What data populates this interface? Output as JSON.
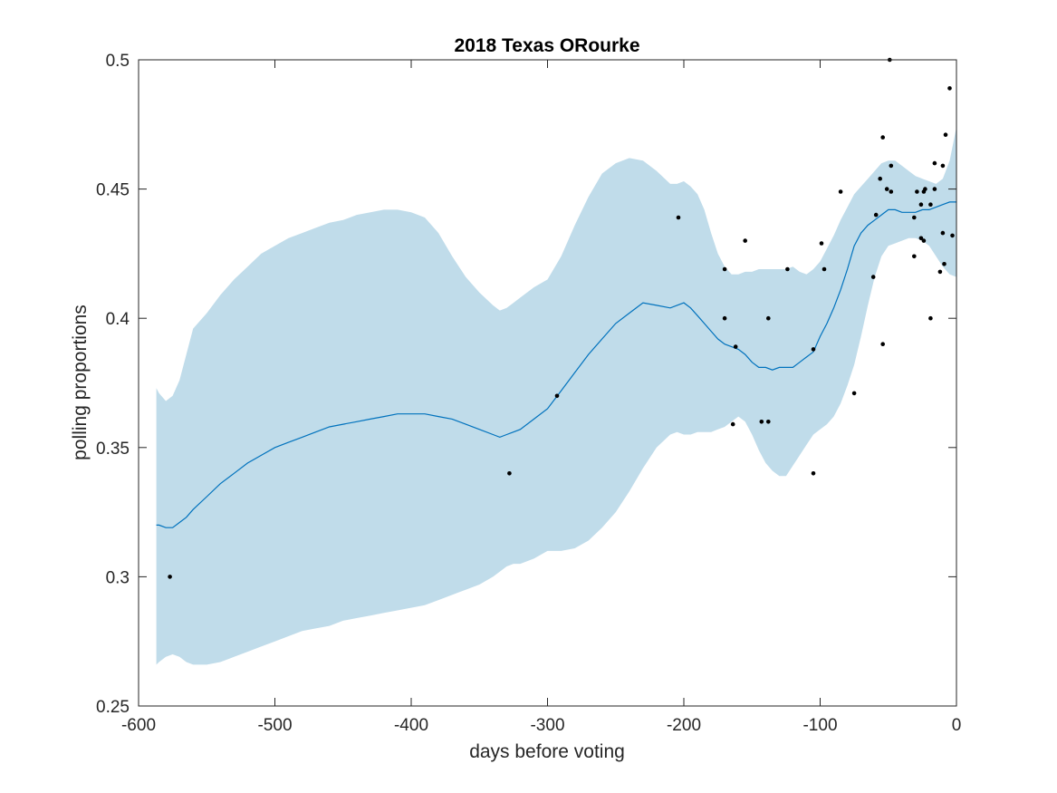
{
  "chart_data": {
    "type": "scatter",
    "title": "2018 Texas ORourke",
    "xlabel": "days before voting",
    "ylabel": "polling proportions",
    "xlim": [
      -600,
      0
    ],
    "ylim": [
      0.25,
      0.5
    ],
    "xticks": [
      -600,
      -500,
      -400,
      -300,
      -200,
      -100,
      0
    ],
    "xtick_labels": [
      "-600",
      "-500",
      "-400",
      "-300",
      "-200",
      "-100",
      "0"
    ],
    "yticks": [
      0.25,
      0.3,
      0.35,
      0.4,
      0.45,
      0.5
    ],
    "ytick_labels": [
      "0.25",
      "0.3",
      "0.35",
      "0.4",
      "0.45",
      "0.5"
    ],
    "grid": false,
    "colors": {
      "band": "#c0dcea",
      "trend": "#0072bd",
      "points": "#000000",
      "axes": "#262626"
    },
    "series": [
      {
        "type": "area",
        "x": [
          -587,
          -585,
          -580,
          -575,
          -570,
          -565,
          -560,
          -550,
          -540,
          -530,
          -520,
          -510,
          -500,
          -490,
          -480,
          -470,
          -460,
          -450,
          -440,
          -430,
          -420,
          -410,
          -400,
          -390,
          -380,
          -370,
          -360,
          -350,
          -340,
          -335,
          -330,
          -325,
          -320,
          -310,
          -300,
          -290,
          -280,
          -270,
          -260,
          -250,
          -240,
          -230,
          -220,
          -210,
          -205,
          -200,
          -195,
          -190,
          -185,
          -180,
          -175,
          -170,
          -165,
          -160,
          -155,
          -150,
          -145,
          -140,
          -135,
          -130,
          -125,
          -120,
          -115,
          -110,
          -105,
          -100,
          -95,
          -90,
          -85,
          -80,
          -75,
          -70,
          -65,
          -60,
          -55,
          -50,
          -45,
          -40,
          -35,
          -30,
          -25,
          -20,
          -15,
          -10,
          -5,
          0
        ],
        "upper": [
          0.373,
          0.371,
          0.368,
          0.37,
          0.376,
          0.386,
          0.396,
          0.402,
          0.409,
          0.415,
          0.42,
          0.425,
          0.428,
          0.431,
          0.433,
          0.435,
          0.437,
          0.438,
          0.44,
          0.441,
          0.442,
          0.442,
          0.441,
          0.439,
          0.433,
          0.424,
          0.416,
          0.41,
          0.405,
          0.403,
          0.404,
          0.406,
          0.408,
          0.412,
          0.415,
          0.424,
          0.436,
          0.447,
          0.456,
          0.46,
          0.462,
          0.461,
          0.457,
          0.452,
          0.452,
          0.453,
          0.451,
          0.448,
          0.442,
          0.433,
          0.425,
          0.42,
          0.417,
          0.417,
          0.418,
          0.418,
          0.419,
          0.419,
          0.419,
          0.419,
          0.419,
          0.42,
          0.418,
          0.417,
          0.419,
          0.422,
          0.427,
          0.432,
          0.438,
          0.443,
          0.448,
          0.451,
          0.454,
          0.457,
          0.46,
          0.461,
          0.461,
          0.459,
          0.457,
          0.455,
          0.454,
          0.453,
          0.452,
          0.454,
          0.461,
          0.474
        ],
        "lower": [
          0.266,
          0.267,
          0.269,
          0.27,
          0.269,
          0.267,
          0.266,
          0.266,
          0.267,
          0.269,
          0.271,
          0.273,
          0.275,
          0.277,
          0.279,
          0.28,
          0.281,
          0.283,
          0.284,
          0.285,
          0.286,
          0.287,
          0.288,
          0.289,
          0.291,
          0.293,
          0.295,
          0.297,
          0.3,
          0.302,
          0.304,
          0.305,
          0.305,
          0.307,
          0.31,
          0.31,
          0.311,
          0.314,
          0.319,
          0.325,
          0.333,
          0.342,
          0.35,
          0.355,
          0.356,
          0.355,
          0.355,
          0.356,
          0.356,
          0.356,
          0.357,
          0.358,
          0.36,
          0.362,
          0.36,
          0.355,
          0.349,
          0.344,
          0.341,
          0.339,
          0.339,
          0.343,
          0.347,
          0.351,
          0.355,
          0.357,
          0.359,
          0.362,
          0.367,
          0.374,
          0.382,
          0.393,
          0.405,
          0.416,
          0.424,
          0.428,
          0.429,
          0.43,
          0.431,
          0.431,
          0.43,
          0.428,
          0.424,
          0.42,
          0.417,
          0.416
        ]
      },
      {
        "type": "line",
        "x": [
          -587,
          -585,
          -580,
          -575,
          -570,
          -565,
          -560,
          -550,
          -540,
          -530,
          -520,
          -510,
          -500,
          -490,
          -480,
          -470,
          -460,
          -450,
          -440,
          -430,
          -420,
          -410,
          -400,
          -390,
          -380,
          -370,
          -360,
          -350,
          -340,
          -335,
          -330,
          -325,
          -320,
          -310,
          -300,
          -290,
          -280,
          -270,
          -260,
          -250,
          -240,
          -230,
          -220,
          -210,
          -205,
          -200,
          -195,
          -190,
          -185,
          -180,
          -175,
          -170,
          -165,
          -160,
          -155,
          -150,
          -145,
          -140,
          -135,
          -130,
          -125,
          -120,
          -115,
          -110,
          -105,
          -100,
          -95,
          -90,
          -85,
          -80,
          -75,
          -70,
          -65,
          -60,
          -55,
          -50,
          -45,
          -40,
          -35,
          -30,
          -25,
          -20,
          -15,
          -10,
          -5,
          0
        ],
        "y": [
          0.32,
          0.32,
          0.319,
          0.319,
          0.321,
          0.323,
          0.326,
          0.331,
          0.336,
          0.34,
          0.344,
          0.347,
          0.35,
          0.352,
          0.354,
          0.356,
          0.358,
          0.359,
          0.36,
          0.361,
          0.362,
          0.363,
          0.363,
          0.363,
          0.362,
          0.361,
          0.359,
          0.357,
          0.355,
          0.354,
          0.355,
          0.356,
          0.357,
          0.361,
          0.365,
          0.372,
          0.379,
          0.386,
          0.392,
          0.398,
          0.402,
          0.406,
          0.405,
          0.404,
          0.405,
          0.406,
          0.404,
          0.401,
          0.398,
          0.395,
          0.392,
          0.39,
          0.389,
          0.388,
          0.386,
          0.383,
          0.381,
          0.381,
          0.38,
          0.381,
          0.381,
          0.381,
          0.383,
          0.385,
          0.387,
          0.393,
          0.398,
          0.404,
          0.411,
          0.419,
          0.428,
          0.433,
          0.436,
          0.438,
          0.44,
          0.442,
          0.442,
          0.441,
          0.441,
          0.441,
          0.442,
          0.442,
          0.443,
          0.444,
          0.445,
          0.445
        ]
      },
      {
        "type": "scatter",
        "points": [
          [
            -577,
            0.3
          ],
          [
            -328,
            0.34
          ],
          [
            -293,
            0.37
          ],
          [
            -204,
            0.439
          ],
          [
            -170,
            0.419
          ],
          [
            -170,
            0.4
          ],
          [
            -164,
            0.359
          ],
          [
            -162,
            0.389
          ],
          [
            -155,
            0.43
          ],
          [
            -143,
            0.36
          ],
          [
            -138,
            0.36
          ],
          [
            -138,
            0.4
          ],
          [
            -124,
            0.419
          ],
          [
            -105,
            0.34
          ],
          [
            -105,
            0.388
          ],
          [
            -99,
            0.429
          ],
          [
            -97,
            0.419
          ],
          [
            -85,
            0.449
          ],
          [
            -75,
            0.371
          ],
          [
            -61,
            0.416
          ],
          [
            -59,
            0.44
          ],
          [
            -56,
            0.454
          ],
          [
            -54,
            0.39
          ],
          [
            -54,
            0.47
          ],
          [
            -51,
            0.45
          ],
          [
            -49,
            0.5
          ],
          [
            -48,
            0.449
          ],
          [
            -48,
            0.459
          ],
          [
            -31,
            0.439
          ],
          [
            -31,
            0.424
          ],
          [
            -29,
            0.449
          ],
          [
            -26,
            0.444
          ],
          [
            -26,
            0.431
          ],
          [
            -24,
            0.449
          ],
          [
            -24,
            0.43
          ],
          [
            -23,
            0.45
          ],
          [
            -19,
            0.444
          ],
          [
            -19,
            0.4
          ],
          [
            -16,
            0.46
          ],
          [
            -16,
            0.45
          ],
          [
            -12,
            0.418
          ],
          [
            -10,
            0.459
          ],
          [
            -10,
            0.433
          ],
          [
            -9,
            0.421
          ],
          [
            -8,
            0.471
          ],
          [
            -5,
            0.489
          ],
          [
            -3,
            0.432
          ]
        ]
      }
    ]
  }
}
